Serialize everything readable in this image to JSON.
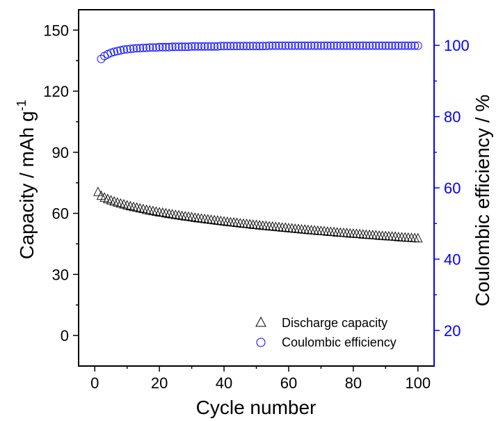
{
  "chart_data": {
    "type": "scatter",
    "xlabel": "Cycle number",
    "ylabel": "Capacity / mAh g",
    "ylabel_superscript": "-1",
    "y2label": "Coulombic efficiency / %",
    "xlim": [
      -5,
      105
    ],
    "ylim": [
      -15,
      160
    ],
    "y2lim": [
      10,
      110
    ],
    "x_ticks": [
      0,
      20,
      40,
      60,
      80,
      100
    ],
    "y_ticks": [
      0,
      30,
      60,
      90,
      120,
      150
    ],
    "y2_ticks": [
      20,
      40,
      60,
      80,
      100
    ],
    "grid": false,
    "legend_position": "bottom-right",
    "colors": {
      "capacity": "#000000",
      "efficiency": "#0000ff"
    },
    "series": [
      {
        "name": "Discharge capacity",
        "axis": "left",
        "marker": "triangle",
        "x": [
          1,
          2,
          3,
          4,
          5,
          6,
          7,
          8,
          9,
          10,
          11,
          12,
          13,
          14,
          15,
          16,
          17,
          18,
          19,
          20,
          21,
          22,
          23,
          24,
          25,
          26,
          27,
          28,
          29,
          30,
          31,
          32,
          33,
          34,
          35,
          36,
          37,
          38,
          39,
          40,
          41,
          42,
          43,
          44,
          45,
          46,
          47,
          48,
          49,
          50,
          51,
          52,
          53,
          54,
          55,
          56,
          57,
          58,
          59,
          60,
          61,
          62,
          63,
          64,
          65,
          66,
          67,
          68,
          69,
          70,
          71,
          72,
          73,
          74,
          75,
          76,
          77,
          78,
          79,
          80,
          81,
          82,
          83,
          84,
          85,
          86,
          87,
          88,
          89,
          90,
          91,
          92,
          93,
          94,
          95,
          96,
          97,
          98,
          99,
          100
        ],
        "values": [
          70.4,
          68.5,
          67.6,
          66.9,
          66.3,
          65.7,
          65.2,
          64.7,
          64.3,
          63.8,
          63.4,
          63.0,
          62.7,
          62.3,
          62.0,
          61.6,
          61.3,
          61.0,
          60.7,
          60.4,
          60.2,
          59.9,
          59.6,
          59.4,
          59.1,
          58.9,
          58.6,
          58.4,
          58.2,
          58.0,
          57.7,
          57.5,
          57.3,
          57.1,
          56.9,
          56.7,
          56.5,
          56.3,
          56.1,
          55.9,
          55.7,
          55.5,
          55.4,
          55.2,
          55.0,
          54.8,
          54.7,
          54.5,
          54.3,
          54.2,
          54.0,
          53.8,
          53.7,
          53.5,
          53.4,
          53.2,
          53.1,
          52.9,
          52.8,
          52.6,
          52.5,
          52.3,
          52.2,
          52.0,
          51.9,
          51.7,
          51.6,
          51.5,
          51.3,
          51.2,
          51.1,
          50.9,
          50.8,
          50.7,
          50.5,
          50.4,
          50.3,
          50.2,
          50.0,
          49.9,
          49.8,
          49.7,
          49.5,
          49.4,
          49.3,
          49.2,
          49.1,
          48.9,
          48.8,
          48.7,
          48.6,
          48.5,
          48.4,
          48.2,
          48.1,
          48.0,
          47.9,
          47.8,
          47.7,
          47.6
        ]
      },
      {
        "name": "Coulombic efficiency",
        "axis": "right",
        "marker": "circle",
        "x": [
          2,
          3,
          4,
          5,
          6,
          7,
          8,
          9,
          10,
          11,
          12,
          13,
          14,
          15,
          16,
          17,
          18,
          19,
          20,
          21,
          22,
          23,
          24,
          25,
          26,
          27,
          28,
          29,
          30,
          31,
          32,
          33,
          34,
          35,
          36,
          37,
          38,
          39,
          40,
          41,
          42,
          43,
          44,
          45,
          46,
          47,
          48,
          49,
          50,
          51,
          52,
          53,
          54,
          55,
          56,
          57,
          58,
          59,
          60,
          61,
          62,
          63,
          64,
          65,
          66,
          67,
          68,
          69,
          70,
          71,
          72,
          73,
          74,
          75,
          76,
          77,
          78,
          79,
          80,
          81,
          82,
          83,
          84,
          85,
          86,
          87,
          88,
          89,
          90,
          91,
          92,
          93,
          94,
          95,
          96,
          97,
          98,
          99,
          100
        ],
        "values": [
          96.2,
          97.0,
          97.5,
          97.9,
          98.2,
          98.4,
          98.6,
          98.8,
          98.9,
          99.0,
          99.1,
          99.2,
          99.2,
          99.3,
          99.3,
          99.4,
          99.4,
          99.4,
          99.5,
          99.5,
          99.5,
          99.5,
          99.6,
          99.6,
          99.6,
          99.6,
          99.6,
          99.6,
          99.7,
          99.7,
          99.7,
          99.7,
          99.7,
          99.7,
          99.7,
          99.7,
          99.7,
          99.8,
          99.8,
          99.8,
          99.8,
          99.8,
          99.8,
          99.8,
          99.8,
          99.8,
          99.8,
          99.8,
          99.8,
          99.8,
          99.8,
          99.8,
          99.9,
          99.9,
          99.9,
          99.9,
          99.9,
          99.9,
          99.9,
          99.9,
          99.9,
          99.9,
          99.9,
          99.9,
          99.9,
          99.9,
          99.9,
          99.9,
          99.9,
          99.9,
          99.9,
          99.9,
          99.9,
          99.9,
          99.9,
          99.9,
          99.9,
          99.9,
          99.9,
          99.9,
          99.9,
          99.9,
          99.9,
          99.9,
          99.9,
          99.9,
          99.9,
          99.9,
          99.9,
          99.9,
          99.9,
          99.9,
          99.9,
          99.9,
          99.9,
          99.9,
          99.9,
          99.9,
          99.9
        ]
      }
    ]
  }
}
